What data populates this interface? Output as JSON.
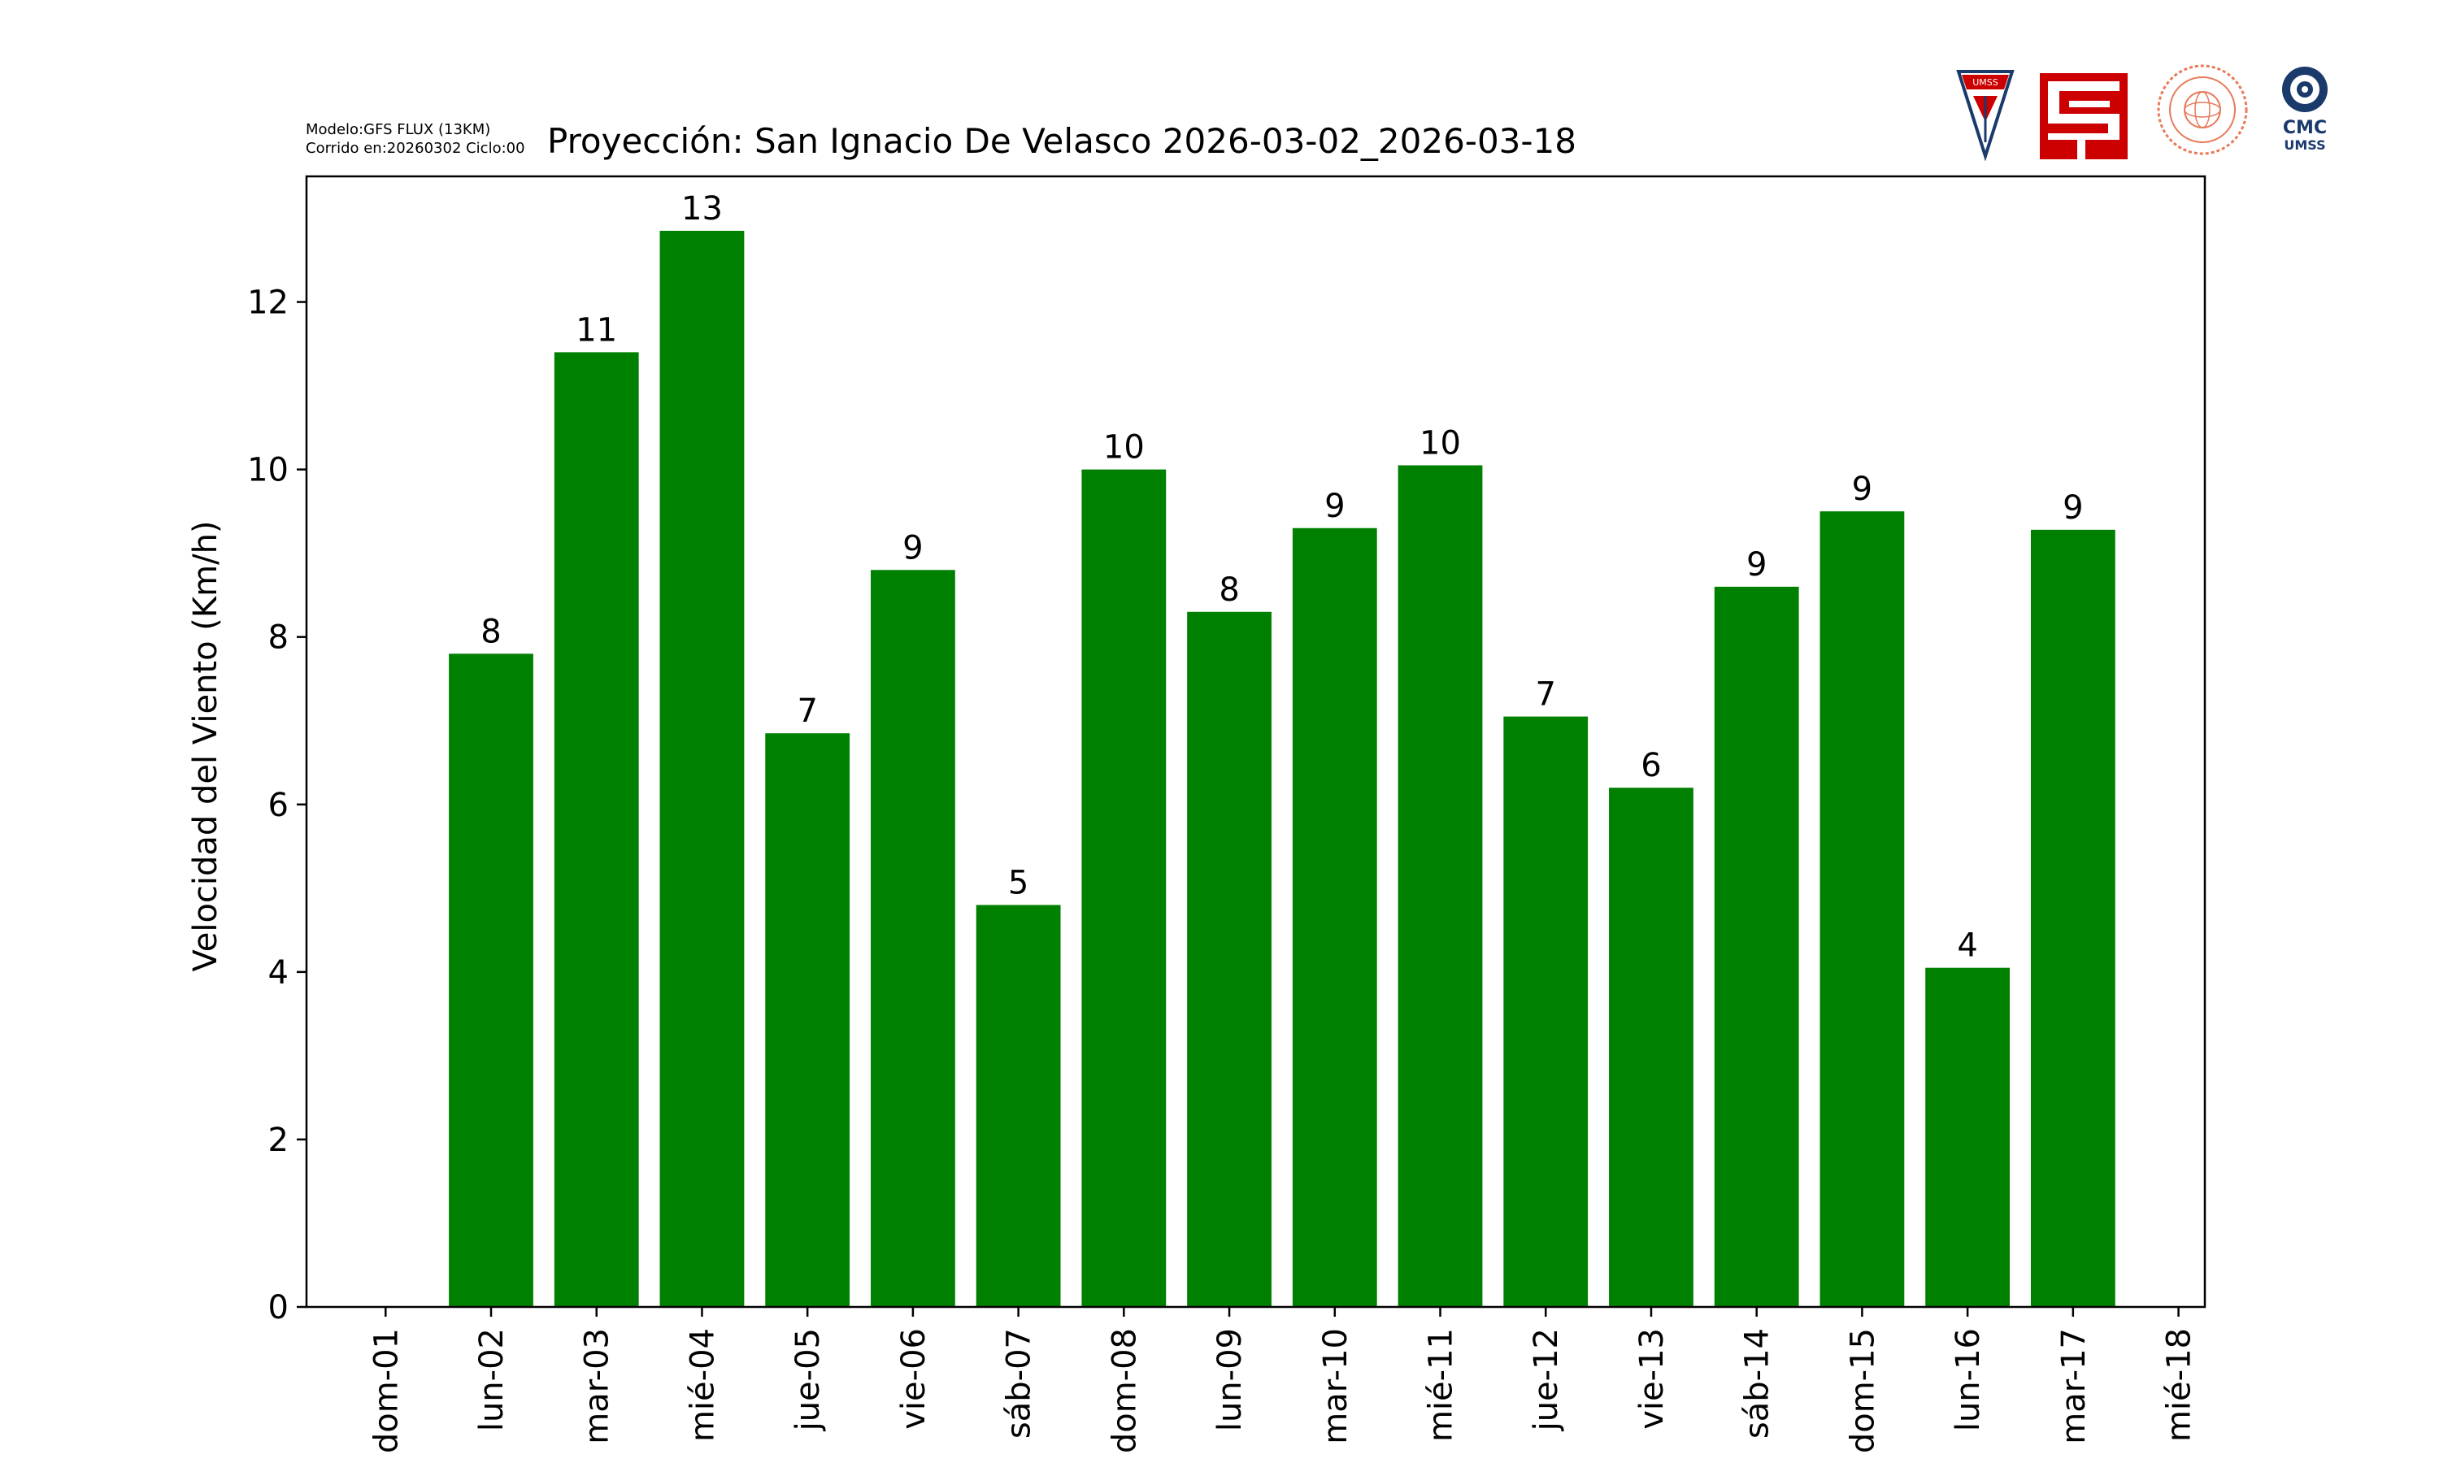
{
  "header": {
    "model": "Modelo:GFS FLUX (13KM)",
    "run": "Corrido en:20260302 Ciclo:00"
  },
  "logos": {
    "umss_label": "UMSS",
    "cmc_label": "CMC",
    "cmc_sub": "UMSS"
  },
  "colors": {
    "bar": "#008000",
    "axis": "#000000",
    "logo_red": "#cc0000",
    "logo_navy": "#1a3a6b"
  },
  "chart_data": {
    "type": "bar",
    "title": "Proyección: San Ignacio De Velasco  2026-03-02_2026-03-18",
    "xlabel": "",
    "ylabel": "Velocidad del Viento (Km/h)",
    "ylim": [
      0,
      13.5
    ],
    "yticks": [
      0,
      2,
      4,
      6,
      8,
      10,
      12
    ],
    "ticks": [
      "dom-01",
      "lun-02",
      "mar-03",
      "mié-04",
      "jue-05",
      "vie-06",
      "sáb-07",
      "dom-08",
      "lun-09",
      "mar-10",
      "mié-11",
      "jue-12",
      "vie-13",
      "sáb-14",
      "dom-15",
      "lun-16",
      "mar-17",
      "mié-18"
    ],
    "categories": [
      "lun-02",
      "mar-03",
      "mié-04",
      "jue-05",
      "vie-06",
      "sáb-07",
      "dom-08",
      "lun-09",
      "mar-10",
      "mié-11",
      "jue-12",
      "vie-13",
      "sáb-14",
      "dom-15",
      "lun-16",
      "mar-17"
    ],
    "values": [
      7.8,
      11.4,
      12.85,
      6.85,
      8.8,
      4.8,
      10.0,
      8.3,
      9.3,
      10.05,
      7.05,
      6.2,
      8.6,
      9.5,
      4.05,
      9.28
    ],
    "data_labels": [
      "8",
      "11",
      "13",
      "7",
      "9",
      "5",
      "10",
      "8",
      "9",
      "10",
      "7",
      "6",
      "9",
      "9",
      "4",
      "9"
    ],
    "grid": false,
    "legend": "none"
  }
}
